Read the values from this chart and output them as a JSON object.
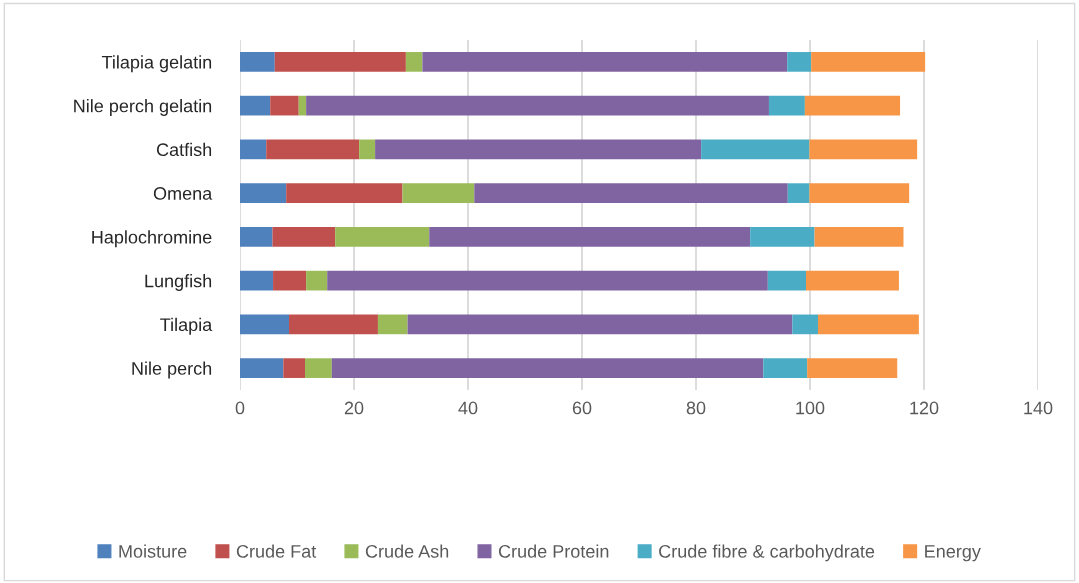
{
  "chart_data": {
    "type": "bar",
    "orientation": "horizontal",
    "stacked": true,
    "categories": [
      "Tilapia gelatin",
      "Nile perch gelatin",
      "Catfish",
      "Omena",
      "Haplochromine",
      "Lungfish",
      "Tilapia",
      "Nile perch"
    ],
    "series": [
      {
        "name": "Moisture",
        "color": "#4f81bd",
        "values": [
          6.1,
          5.3,
          4.6,
          8.1,
          5.7,
          5.8,
          8.6,
          7.6
        ]
      },
      {
        "name": "Crude Fat",
        "color": "#c0504d",
        "values": [
          23.0,
          5.0,
          16.3,
          20.4,
          11.0,
          5.8,
          15.6,
          3.8
        ]
      },
      {
        "name": "Crude Ash",
        "color": "#9bbb59",
        "values": [
          2.9,
          1.3,
          2.8,
          12.6,
          16.5,
          3.7,
          5.2,
          4.7
        ]
      },
      {
        "name": "Crude Protein",
        "color": "#8064a2",
        "values": [
          64.0,
          81.2,
          57.2,
          55.0,
          56.3,
          77.3,
          67.5,
          75.7
        ]
      },
      {
        "name": "Crude fibre & carbohydrate",
        "color": "#4bacc6",
        "values": [
          4.2,
          6.3,
          19.0,
          3.8,
          11.3,
          6.7,
          4.5,
          7.7
        ]
      },
      {
        "name": "Energy",
        "color": "#f79646",
        "values": [
          20.0,
          16.7,
          18.9,
          17.5,
          15.6,
          16.3,
          17.7,
          15.8
        ]
      }
    ],
    "xlim": [
      0,
      140
    ],
    "xticks": [
      0,
      20,
      40,
      60,
      80,
      100,
      120,
      140
    ],
    "grid": "x",
    "legend": "bottom"
  }
}
